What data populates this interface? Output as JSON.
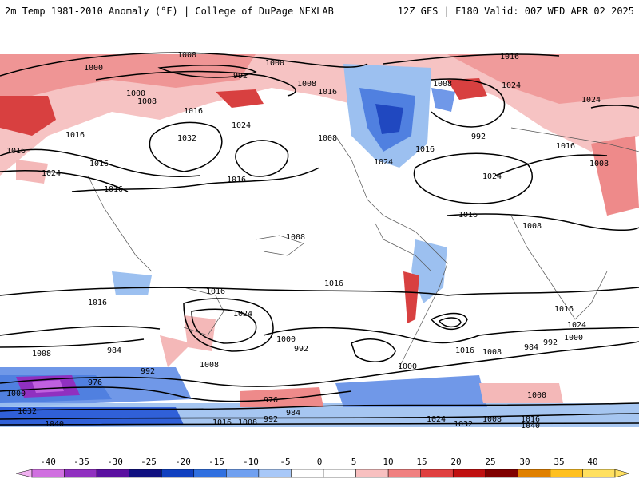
{
  "header": {
    "left_title": "2m Temp 1981-2010 Anomaly (°F) | College of DuPage NEXLAB",
    "right_title": "12Z GFS | F180 Valid: 00Z WED APR 02 2025"
  },
  "contour_labels": [
    "1008",
    "1000",
    "992",
    "1000",
    "1008",
    "1000",
    "1016",
    "1016",
    "1032",
    "1024",
    "1016",
    "1008",
    "1024",
    "1016",
    "1016",
    "1016",
    "1024",
    "1016",
    "992",
    "1008",
    "1016",
    "1024",
    "1016",
    "1024",
    "1016",
    "1008",
    "1024",
    "1016",
    "1008",
    "1008",
    "1016",
    "1016",
    "1024",
    "1000",
    "992",
    "1008",
    "1016",
    "984",
    "976",
    "992",
    "1008",
    "1000",
    "1032",
    "1040",
    "1016",
    "1008",
    "992",
    "984",
    "976",
    "1000",
    "1032",
    "1024",
    "1016",
    "1000",
    "1008",
    "984",
    "992",
    "1000",
    "1008",
    "1016",
    "1040",
    "1016",
    "1024",
    "1008"
  ],
  "colorbar": {
    "ticks": [
      "-40",
      "-35",
      "-30",
      "-25",
      "-20",
      "-15",
      "-10",
      "-5",
      "0",
      "5",
      "10",
      "15",
      "20",
      "25",
      "30",
      "35",
      "40"
    ],
    "colors": [
      "#f0b0f0",
      "#d070e0",
      "#9030c0",
      "#5a10a0",
      "#101080",
      "#1040c0",
      "#3070e0",
      "#70a0f0",
      "#a8c8f8",
      "#ffffff",
      "#ffffff",
      "#f8c0c0",
      "#f08080",
      "#e04040",
      "#c01010",
      "#800000",
      "#e08000",
      "#ffc020",
      "#ffe060"
    ]
  }
}
